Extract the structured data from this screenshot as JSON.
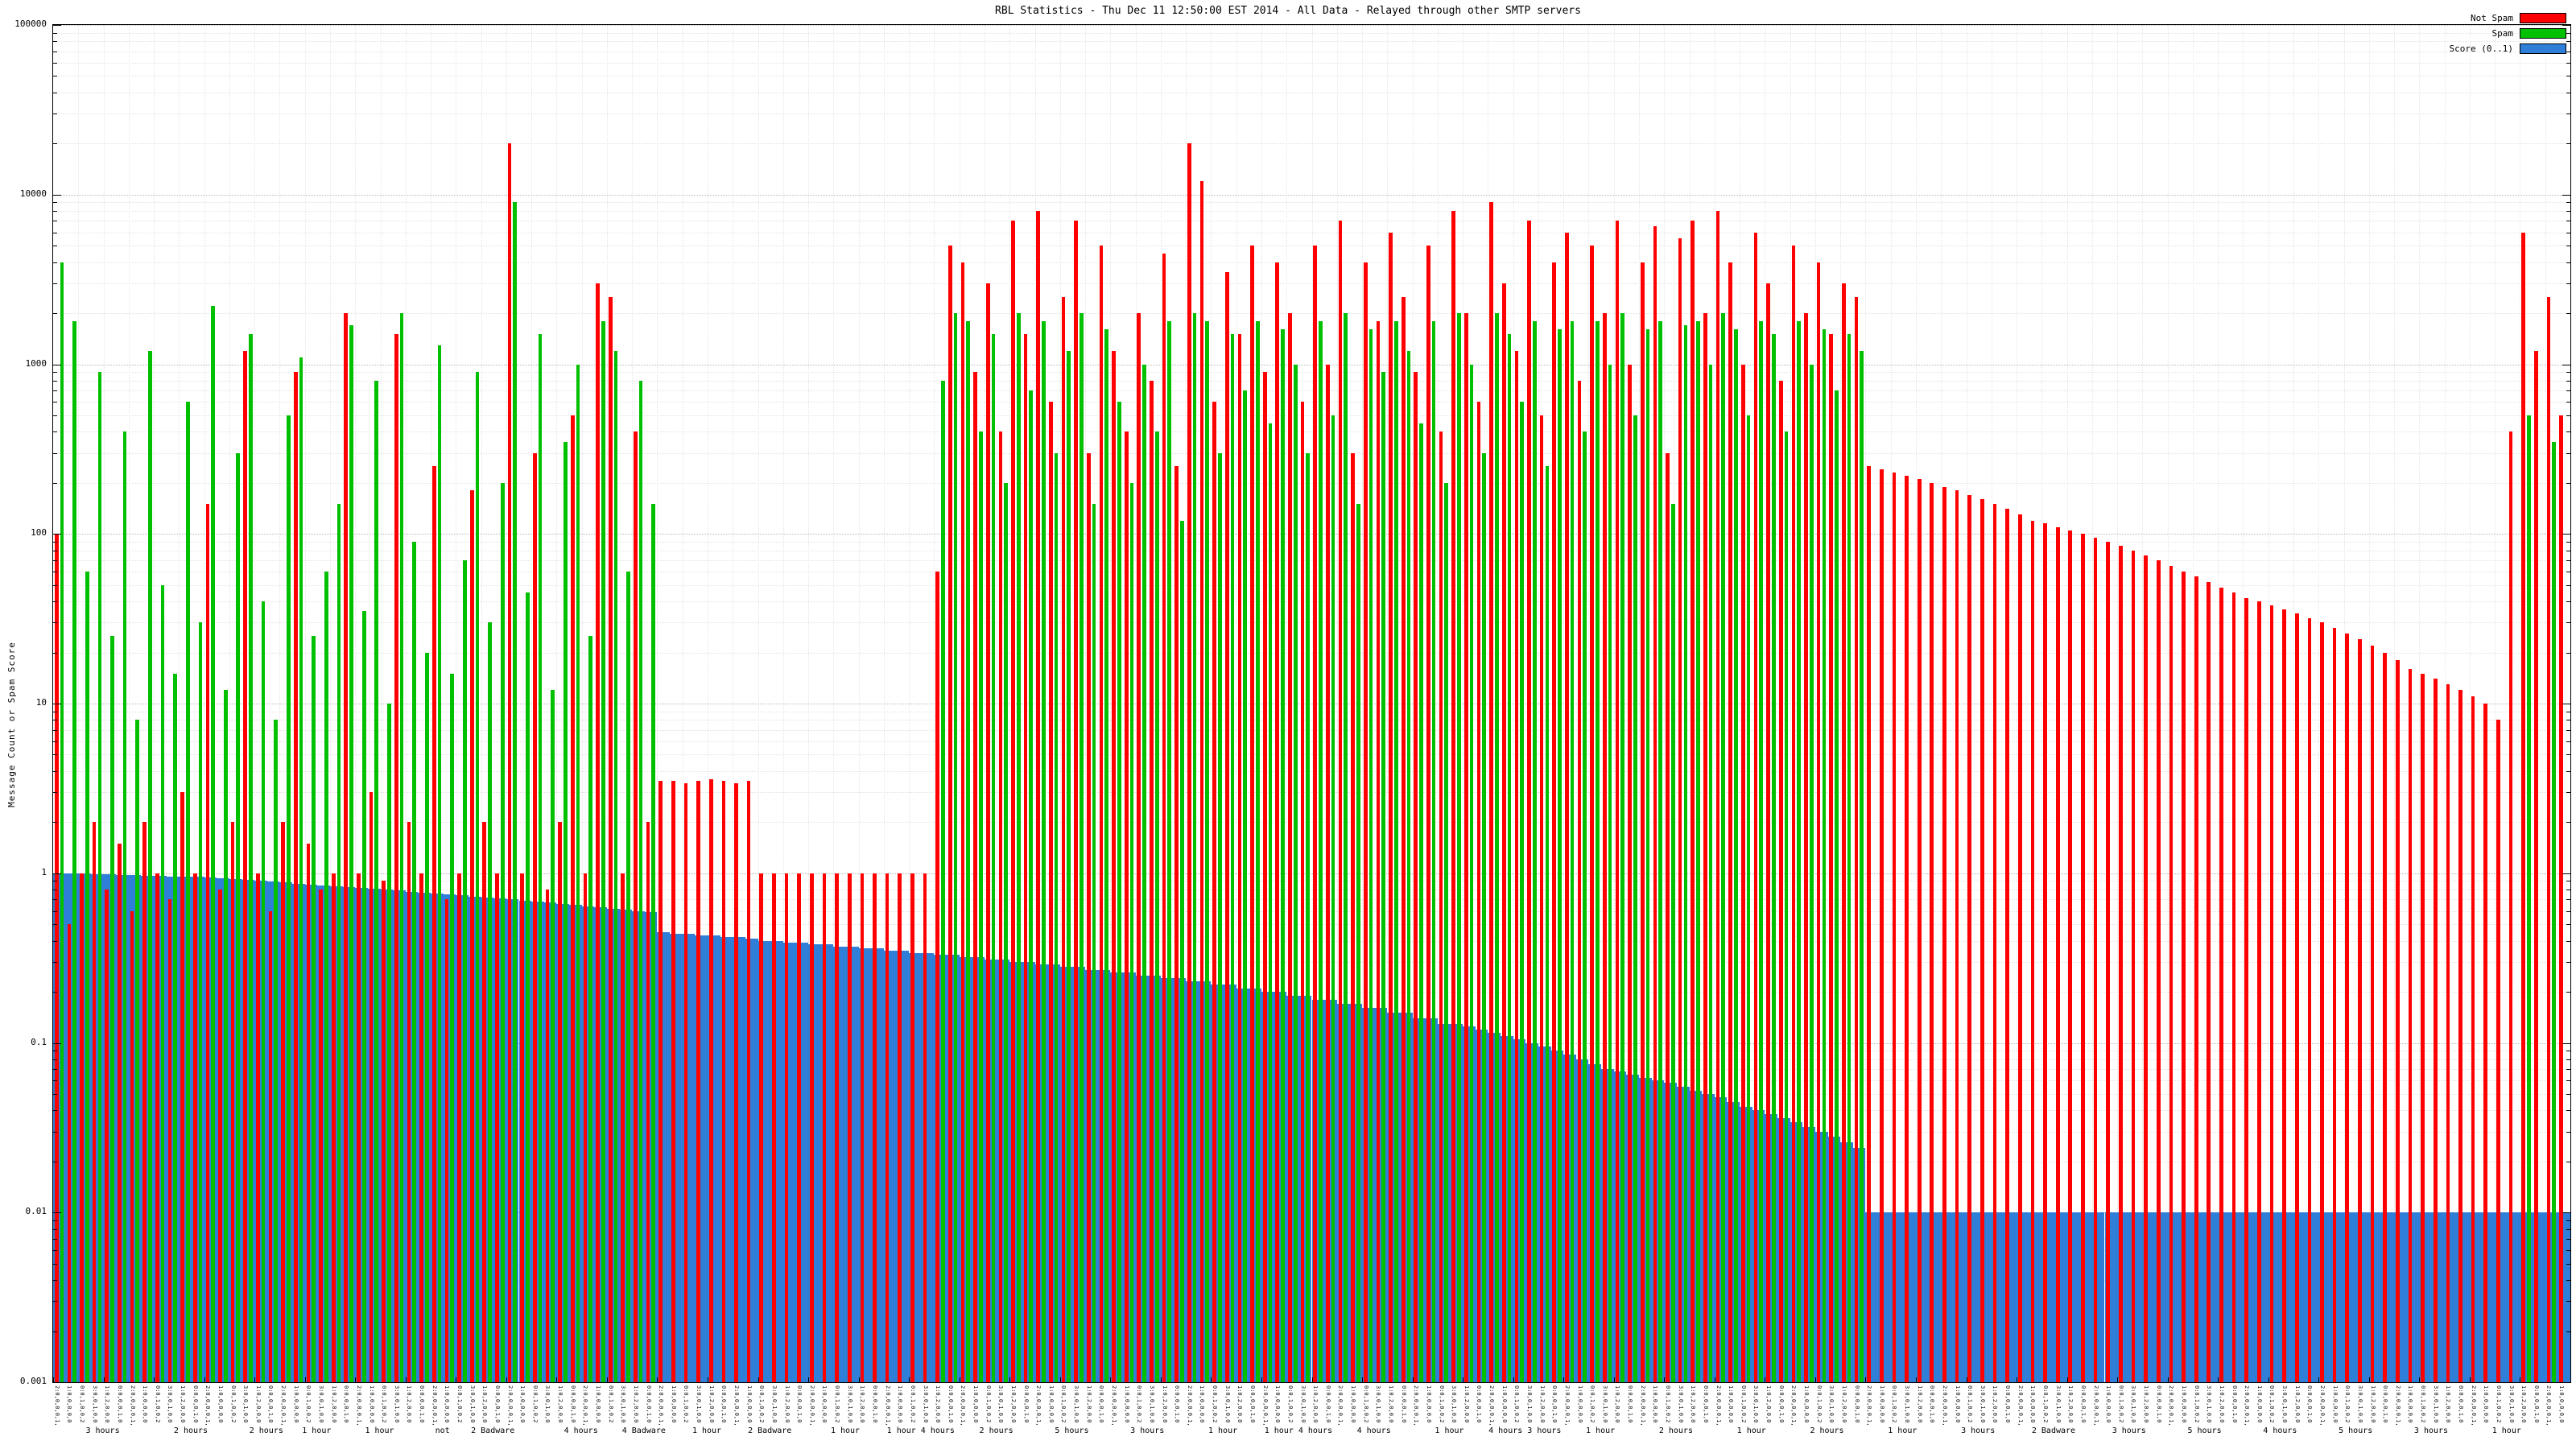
{
  "title": "RBL Statistics - Thu Dec 11 12:50:00 EST 2014 - All Data - Relayed through other SMTP servers",
  "ylabel": "Message Count or Spam Score",
  "legend": [
    {
      "label": "Not Spam",
      "color": "#ff0000"
    },
    {
      "label": "Spam",
      "color": "#00c000"
    },
    {
      "label": "Score (0..1)",
      "color": "#2f7ed8"
    }
  ],
  "chart_data": {
    "type": "bar",
    "scale": "log",
    "title": "RBL Statistics - Thu Dec 11 12:50:00 EST 2014 - All Data - Relayed through other SMTP servers",
    "xlabel": "",
    "ylabel": "Message Count or Spam Score",
    "ylim": [
      0.001,
      100000
    ],
    "grid": true,
    "legend_position": "top-right",
    "ytick_labels": [
      "100000",
      "10000",
      "1000",
      "100",
      "10",
      "1",
      "0.1",
      "0.01",
      "0.001"
    ],
    "x_tick_label_patterns": [
      "2:0,0,0,0,1,0",
      "1:0,0,0,0,0",
      "0:0,1,0,0,2",
      "3:0,0,1,0,0",
      "1:0,2,0,0,0",
      "0:0,0,0,1,0"
    ],
    "x_sublabels": [
      {
        "x": 0.02,
        "text": "3 hours"
      },
      {
        "x": 0.055,
        "text": "2 hours"
      },
      {
        "x": 0.085,
        "text": "2 hours"
      },
      {
        "x": 0.105,
        "text": "1 hour"
      },
      {
        "x": 0.13,
        "text": "1 hour"
      },
      {
        "x": 0.155,
        "text": "not"
      },
      {
        "x": 0.175,
        "text": "2 Badware"
      },
      {
        "x": 0.21,
        "text": "4 hours"
      },
      {
        "x": 0.235,
        "text": "4 Badware"
      },
      {
        "x": 0.26,
        "text": "1 hour"
      },
      {
        "x": 0.285,
        "text": "2 Badware"
      },
      {
        "x": 0.315,
        "text": "1 hour"
      },
      {
        "x": 0.345,
        "text": "1 hour 4 hours"
      },
      {
        "x": 0.375,
        "text": "2 hours"
      },
      {
        "x": 0.405,
        "text": "5 hours"
      },
      {
        "x": 0.435,
        "text": "3 hours"
      },
      {
        "x": 0.465,
        "text": "1 hour"
      },
      {
        "x": 0.495,
        "text": "1 hour 4 hours"
      },
      {
        "x": 0.525,
        "text": "4 hours"
      },
      {
        "x": 0.555,
        "text": "1 hour"
      },
      {
        "x": 0.585,
        "text": "4 hours 3 hours"
      },
      {
        "x": 0.615,
        "text": "1 hour"
      },
      {
        "x": 0.645,
        "text": "2 hours"
      },
      {
        "x": 0.675,
        "text": "1 hour"
      },
      {
        "x": 0.705,
        "text": "2 hours"
      },
      {
        "x": 0.735,
        "text": "1 hour"
      },
      {
        "x": 0.765,
        "text": "3 hours"
      },
      {
        "x": 0.795,
        "text": "2 Badware"
      },
      {
        "x": 0.825,
        "text": "3 hours"
      },
      {
        "x": 0.855,
        "text": "5 hours"
      },
      {
        "x": 0.885,
        "text": "4 hours"
      },
      {
        "x": 0.915,
        "text": "5 hours"
      },
      {
        "x": 0.945,
        "text": "3 hours"
      },
      {
        "x": 0.975,
        "text": "1 hour"
      }
    ],
    "series": [
      {
        "name": "Not Spam",
        "color": "#ff0000",
        "values": [
          100,
          0.5,
          1,
          2,
          0.8,
          1.5,
          0.6,
          2,
          1,
          0.7,
          3,
          1,
          150,
          0.8,
          2,
          1200,
          1,
          0.6,
          2,
          900,
          1.5,
          0.8,
          1,
          2000,
          1,
          3,
          0.9,
          1500,
          2,
          1,
          250,
          0.7,
          1,
          180,
          2,
          1,
          20000,
          1,
          300,
          0.8,
          2,
          500,
          1,
          3000,
          2500,
          1,
          400,
          2,
          3.5,
          3.5,
          3.4,
          3.5,
          3.6,
          3.5,
          3.4,
          3.5,
          1,
          1,
          1,
          1,
          1,
          1,
          1,
          1,
          1,
          1,
          1,
          1,
          1,
          1,
          60,
          5000,
          4000,
          900,
          3000,
          400,
          7000,
          1500,
          8000,
          600,
          2500,
          7000,
          300,
          5000,
          1200,
          400,
          2000,
          800,
          4500,
          250,
          20000,
          12000,
          600,
          3500,
          1500,
          5000,
          900,
          4000,
          2000,
          600,
          5000,
          1000,
          7000,
          300,
          4000,
          1800,
          6000,
          2500,
          900,
          5000,
          400,
          8000,
          2000,
          600,
          9000,
          3000,
          1200,
          7000,
          500,
          4000,
          6000,
          800,
          5000,
          2000,
          7000,
          1000,
          4000,
          6500,
          300,
          5500,
          7000,
          2000,
          8000,
          4000,
          1000,
          6000,
          3000,
          800,
          5000,
          2000,
          4000,
          1500,
          3000,
          2500,
          250,
          240,
          230,
          220,
          210,
          200,
          190,
          180,
          170,
          160,
          150,
          140,
          130,
          120,
          115,
          110,
          105,
          100,
          95,
          90,
          85,
          80,
          75,
          70,
          65,
          60,
          56,
          52,
          48,
          45,
          42,
          40,
          38,
          36,
          34,
          32,
          30,
          28,
          26,
          24,
          22,
          20,
          18,
          16,
          15,
          14,
          13,
          12,
          11,
          10,
          8,
          400,
          6000,
          1200,
          2500,
          500
        ]
      },
      {
        "name": "Spam",
        "color": "#00c000",
        "values": [
          4000,
          1800,
          60,
          900,
          25,
          400,
          8,
          1200,
          50,
          15,
          600,
          30,
          2200,
          12,
          300,
          1500,
          40,
          8,
          500,
          1100,
          25,
          60,
          150,
          1700,
          35,
          800,
          10,
          2000,
          90,
          20,
          1300,
          15,
          70,
          900,
          30,
          200,
          9000,
          45,
          1500,
          12,
          350,
          1000,
          25,
          1800,
          1200,
          60,
          800,
          150,
          0,
          0,
          0,
          0,
          0,
          0,
          0,
          0,
          0,
          0,
          0,
          0,
          0,
          0,
          0,
          0,
          0,
          0,
          0,
          0,
          0,
          0,
          800,
          2000,
          1800,
          400,
          1500,
          200,
          2000,
          700,
          1800,
          300,
          1200,
          2000,
          150,
          1600,
          600,
          200,
          1000,
          400,
          1800,
          120,
          2000,
          1800,
          300,
          1500,
          700,
          1800,
          450,
          1600,
          1000,
          300,
          1800,
          500,
          2000,
          150,
          1600,
          900,
          1800,
          1200,
          450,
          1800,
          200,
          2000,
          1000,
          300,
          2000,
          1500,
          600,
          1800,
          250,
          1600,
          1800,
          400,
          1800,
          1000,
          2000,
          500,
          1600,
          1800,
          150,
          1700,
          1800,
          1000,
          2000,
          1600,
          500,
          1800,
          1500,
          400,
          1800,
          1000,
          1600,
          700,
          1500,
          1200,
          0,
          0,
          0,
          0,
          0,
          0,
          0,
          0,
          0,
          0,
          0,
          0,
          0,
          0,
          0,
          0,
          0,
          0,
          0,
          0,
          0,
          0,
          0,
          0,
          0,
          0,
          0,
          0,
          0,
          0,
          0,
          0,
          0,
          0,
          0,
          0,
          0,
          0,
          0,
          0,
          0,
          0,
          0,
          0,
          0,
          0,
          0,
          0,
          0,
          0,
          0,
          0,
          500,
          0,
          350,
          0
        ]
      },
      {
        "name": "Score (0..1)",
        "color": "#2f7ed8",
        "values": [
          1.0,
          1.0,
          1.0,
          0.99,
          0.99,
          0.98,
          0.98,
          0.97,
          0.97,
          0.96,
          0.96,
          0.95,
          0.94,
          0.93,
          0.92,
          0.91,
          0.9,
          0.89,
          0.88,
          0.87,
          0.86,
          0.85,
          0.84,
          0.83,
          0.82,
          0.81,
          0.8,
          0.79,
          0.78,
          0.77,
          0.76,
          0.75,
          0.74,
          0.73,
          0.72,
          0.71,
          0.7,
          0.69,
          0.68,
          0.67,
          0.66,
          0.65,
          0.64,
          0.63,
          0.62,
          0.61,
          0.6,
          0.59,
          0.45,
          0.44,
          0.44,
          0.43,
          0.43,
          0.42,
          0.42,
          0.41,
          0.4,
          0.4,
          0.39,
          0.39,
          0.38,
          0.38,
          0.37,
          0.37,
          0.36,
          0.36,
          0.35,
          0.35,
          0.34,
          0.34,
          0.33,
          0.33,
          0.32,
          0.32,
          0.31,
          0.31,
          0.3,
          0.3,
          0.29,
          0.29,
          0.28,
          0.28,
          0.27,
          0.27,
          0.26,
          0.26,
          0.25,
          0.25,
          0.24,
          0.24,
          0.23,
          0.23,
          0.22,
          0.22,
          0.21,
          0.21,
          0.2,
          0.2,
          0.19,
          0.19,
          0.18,
          0.18,
          0.17,
          0.17,
          0.16,
          0.16,
          0.15,
          0.15,
          0.14,
          0.14,
          0.13,
          0.13,
          0.125,
          0.12,
          0.115,
          0.11,
          0.105,
          0.1,
          0.095,
          0.09,
          0.085,
          0.08,
          0.075,
          0.07,
          0.068,
          0.065,
          0.062,
          0.06,
          0.058,
          0.055,
          0.052,
          0.05,
          0.048,
          0.045,
          0.042,
          0.04,
          0.038,
          0.036,
          0.034,
          0.032,
          0.03,
          0.028,
          0.026,
          0.024,
          0.01,
          0.01,
          0.01,
          0.01,
          0.01,
          0.01,
          0.01,
          0.01,
          0.01,
          0.01,
          0.01,
          0.01,
          0.01,
          0.01,
          0.01,
          0.01,
          0.01,
          0.01,
          0.01,
          0.01,
          0.01,
          0.01,
          0.01,
          0.01,
          0.01,
          0.01,
          0.01,
          0.01,
          0.01,
          0.01,
          0.01,
          0.01,
          0.01,
          0.01,
          0.01,
          0.01,
          0.01,
          0.01,
          0.01,
          0.01,
          0.01,
          0.01,
          0.01,
          0.01,
          0.01,
          0.01,
          0.01,
          0.01,
          0.01,
          0.01,
          0.01,
          0.01,
          0.01,
          0.01,
          0.01,
          0.01
        ]
      }
    ]
  }
}
